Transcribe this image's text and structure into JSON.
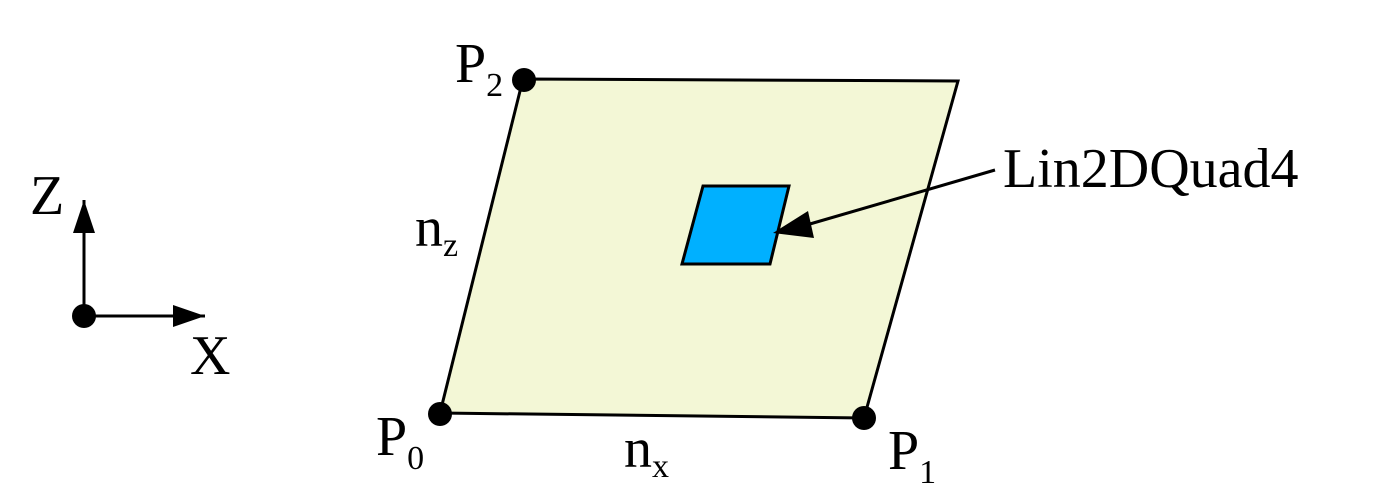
{
  "axes": {
    "vertical_label": "Z",
    "horizontal_label": "X"
  },
  "points": {
    "p0": {
      "base": "P",
      "subscript": "0"
    },
    "p1": {
      "base": "P",
      "subscript": "1"
    },
    "p2": {
      "base": "P",
      "subscript": "2"
    }
  },
  "edges": {
    "nx": {
      "base": "n",
      "subscript": "x"
    },
    "nz": {
      "base": "n",
      "subscript": "z"
    }
  },
  "element": {
    "label": "Lin2DQuad4"
  },
  "colors": {
    "plane_fill": "#f3f7d6",
    "element_fill": "#00b0ff",
    "stroke": "#000000"
  }
}
